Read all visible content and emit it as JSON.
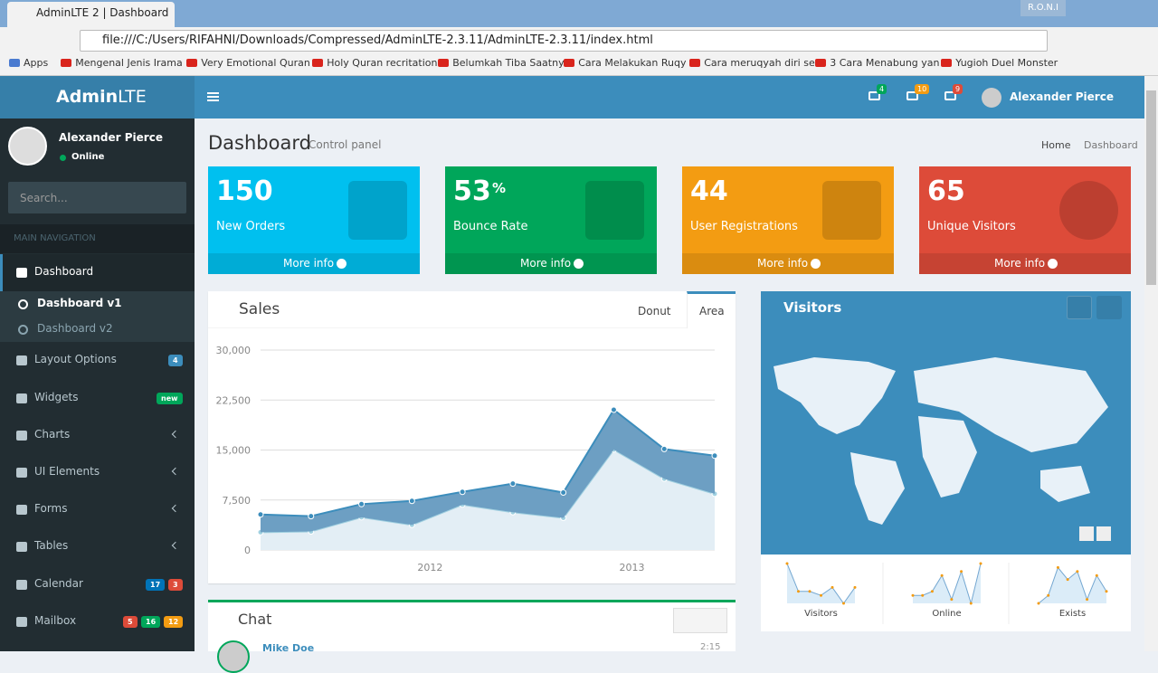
{
  "browser": {
    "tab_title": "AdminLTE 2 | Dashboard",
    "profile": "R.O.N.I",
    "url": "file:///C:/Users/RIFAHNI/Downloads/Compressed/AdminLTE-2.3.11/AdminLTE-2.3.11/index.html",
    "bookmarks": [
      "Apps",
      "Mengenal Jenis Irama",
      "Very Emotional Quran",
      "Holy Quran recritation",
      "Belumkah Tiba Saatny",
      "Cara Melakukan Ruqy",
      "Cara meruqyah diri se",
      "3 Cara Menabung yan",
      "Yugioh Duel Monster"
    ]
  },
  "header": {
    "logo_bold": "Admin",
    "logo_light": "LTE",
    "badges": [
      {
        "text": 4,
        "color": "#00a65a"
      },
      {
        "text": 10,
        "color": "#f39c12"
      },
      {
        "text": 9,
        "color": "#dd4b39"
      }
    ],
    "user": "Alexander Pierce"
  },
  "sidebar": {
    "user": "Alexander Pierce",
    "status": "Online",
    "search": "Search...",
    "section": "MAIN NAVIGATION",
    "menu": [
      {
        "label": "Dashboard",
        "children": [
          "Dashboard v1",
          "Dashboard v2"
        ]
      },
      {
        "label": "Layout Options",
        "badges": [
          {
            "text": 4,
            "color": "#3c8dbc"
          }
        ]
      },
      {
        "label": "Widgets",
        "badges": [
          {
            "text": "new",
            "color": "#00a65a"
          }
        ]
      },
      {
        "label": "Charts"
      },
      {
        "label": "UI Elements"
      },
      {
        "label": "Forms"
      },
      {
        "label": "Tables"
      },
      {
        "label": "Calendar",
        "badges": [
          {
            "text": 17,
            "color": "#0073b7"
          },
          {
            "text": 3,
            "color": "#dd4b39"
          }
        ]
      },
      {
        "label": "Mailbox",
        "badges": [
          {
            "text": 5,
            "color": "#dd4b39"
          },
          {
            "text": 16,
            "color": "#00a65a"
          },
          {
            "text": 12,
            "color": "#f39c12"
          }
        ]
      }
    ]
  },
  "content": {
    "title": "Dashboard",
    "subtitle": "Control panel",
    "breadcrumb": [
      "Home",
      "Dashboard"
    ],
    "boxes": [
      {
        "value": 150,
        "label": "New Orders",
        "link": "More info",
        "color": "#00c0ef"
      },
      {
        "value": 53,
        "unit": "%",
        "label": "Bounce Rate",
        "link": "More info",
        "color": "#00a65a"
      },
      {
        "value": 44,
        "label": "User Registrations",
        "link": "More info",
        "color": "#f39c12"
      },
      {
        "value": 65,
        "label": "Unique Visitors",
        "link": "More info",
        "color": "#dd4b39"
      }
    ],
    "sales": {
      "title": "Sales",
      "tabs": [
        "Donut",
        "Area"
      ],
      "chart": {
        "type": "area",
        "stacked": true,
        "grid": true,
        "x": [
          2011.16,
          2011.41,
          2011.66,
          2011.91,
          2012.16,
          2012.41,
          2012.66,
          2012.91,
          2013.16,
          2013.41
        ],
        "xlim": [
          2011.16,
          2013.41
        ],
        "xticks": [
          {
            "value": 2012,
            "label": "2012"
          },
          {
            "value": 2013,
            "label": "2013"
          }
        ],
        "ylim": [
          0,
          30000
        ],
        "yticks": [
          0,
          {
            "value": 7500,
            "label": "7,500"
          },
          {
            "value": 15000,
            "label": "15,000"
          },
          {
            "value": 22500,
            "label": "22,500"
          },
          {
            "value": 30000,
            "label": "30,000"
          }
        ],
        "series": [
          {
            "color": "#a0d0e0",
            "values": [
              2666,
              2778,
              4912,
              3767,
              6810,
              5670,
              4820,
              15073,
              10687,
              8432
            ]
          },
          {
            "color": "#3c8dbc",
            "values": [
              2666,
              2294,
              1969,
              3597,
              1914,
              4293,
              3795,
              5967,
              4460,
              5713
            ]
          }
        ]
      }
    },
    "visitors": {
      "title": "Visitors",
      "sparklines": [
        {
          "label": "Visitors",
          "values": [
            10,
            3,
            3,
            2,
            4,
            0,
            4
          ],
          "ylim": [
            0,
            10
          ]
        },
        {
          "label": "Online",
          "values": [
            2,
            2,
            3,
            7,
            1,
            8,
            0,
            10
          ],
          "ylim": [
            0,
            10
          ]
        },
        {
          "label": "Exists",
          "values": [
            0,
            2,
            9,
            6,
            8,
            1,
            7,
            3
          ],
          "ylim": [
            0,
            10
          ]
        }
      ]
    },
    "chat": {
      "title": "Chat",
      "name": "Mike Doe",
      "time": "2:15"
    }
  }
}
